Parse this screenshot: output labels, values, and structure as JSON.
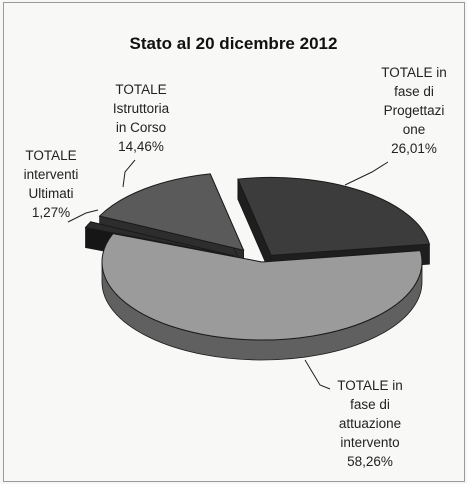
{
  "chart_data": {
    "type": "pie",
    "title": "Stato al 20 dicembre  2012",
    "categories": [
      "TOTALE in fase di Progettazione",
      "TOTALE in fase di attuazione intervento",
      "TOTALE interventi Ultimati",
      "TOTALE Istruttoria in Corso"
    ],
    "values": [
      26.01,
      58.26,
      1.27,
      14.46
    ],
    "colors": [
      "#3c3c3c",
      "#9b9b9b",
      "#2b2b2b",
      "#5a5a5a"
    ],
    "labels": {
      "progettazione": [
        "TOTALE in",
        "fase di",
        "Progettazi",
        "one",
        "26,01%"
      ],
      "attuazione": [
        "TOTALE in",
        "fase di",
        "attuazione",
        "intervento",
        "58,26%"
      ],
      "ultimati": [
        "TOTALE",
        "interventi",
        "Ultimati",
        "1,27%"
      ],
      "istruttoria": [
        "TOTALE",
        "Istruttoria",
        "in Corso",
        "14,46%"
      ]
    }
  }
}
